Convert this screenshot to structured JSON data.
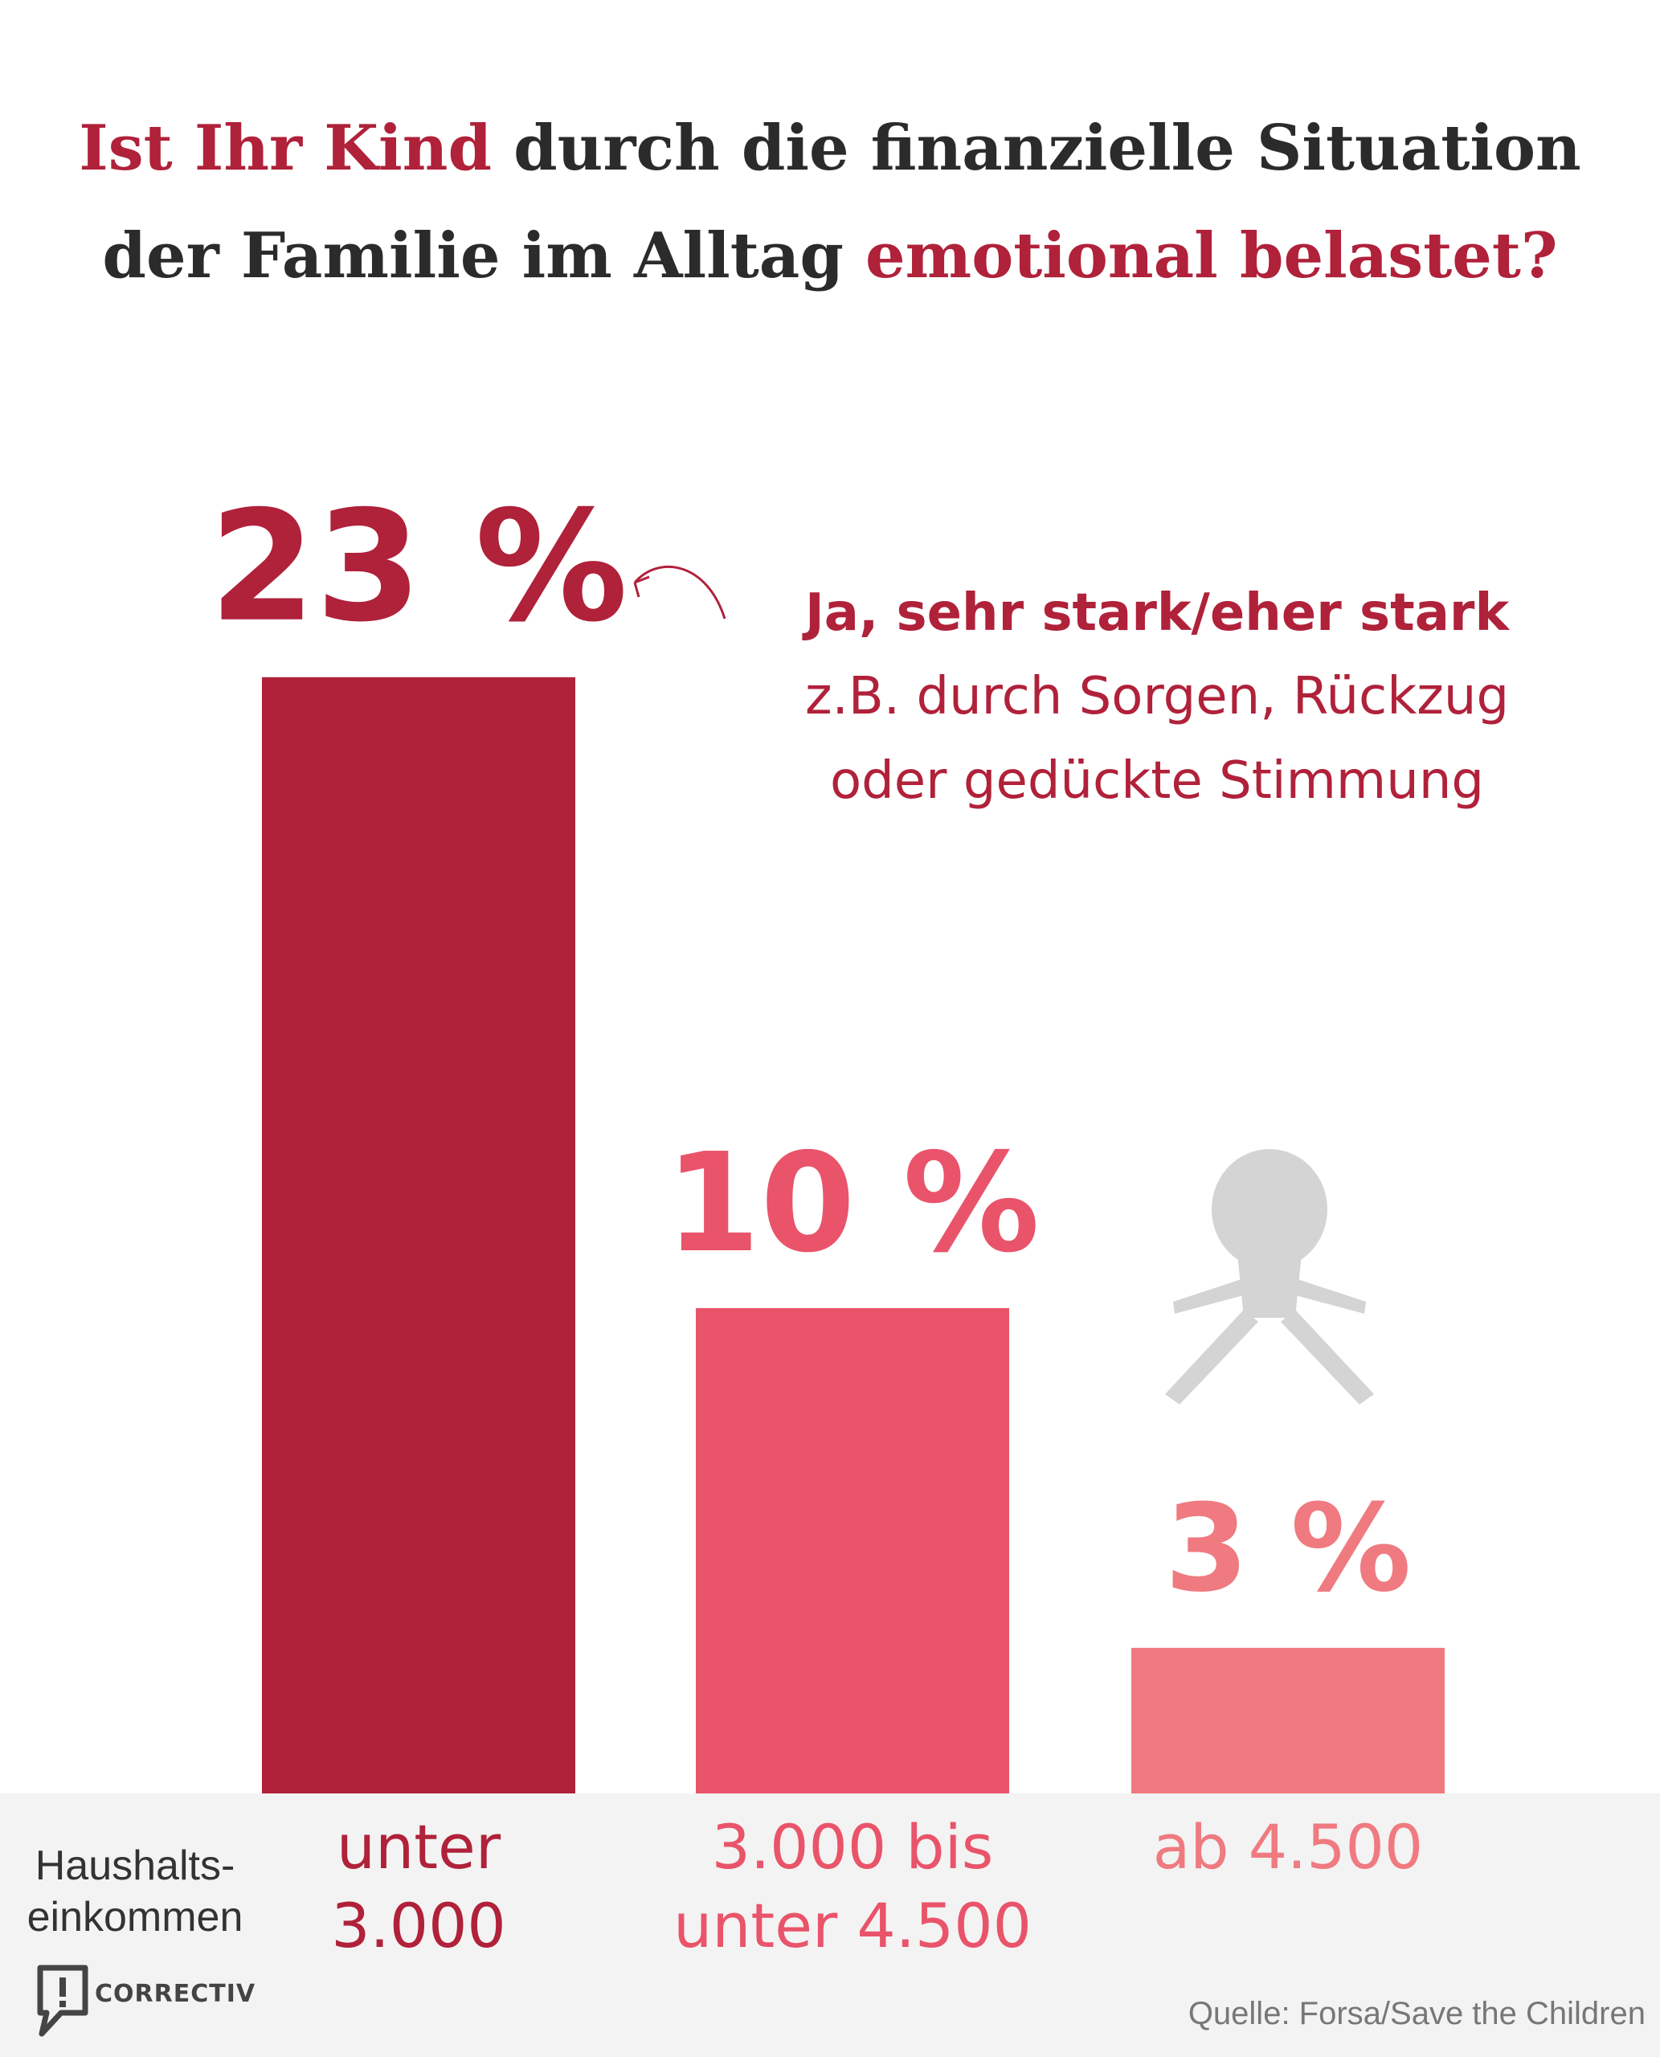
{
  "title": {
    "part1": "Ist Ihr Kind",
    "part2": " durch die finanzielle Situation",
    "part3": "der Familie im Alltag ",
    "part4": "emotional belastet?"
  },
  "annotation": {
    "heading": "Ja, sehr stark/eher stark",
    "line1": "z.B. durch Sorgen, Rückzug",
    "line2": "oder gedückte Stimmung"
  },
  "axis_label": {
    "line1": "Haushalts-",
    "line2": "einkommen"
  },
  "chart_data": {
    "type": "bar",
    "unit": "%",
    "categories": [
      [
        "unter",
        "3.000"
      ],
      [
        "3.000 bis",
        "unter 4.500"
      ],
      [
        "ab 4.500"
      ]
    ],
    "values": [
      23,
      10,
      3
    ],
    "value_labels": [
      "23 %",
      "10 %",
      "3 %"
    ],
    "colors": [
      "#b0213a",
      "#e9546a",
      "#ef7a80"
    ]
  },
  "colors": {
    "accent": "#b0213a",
    "title_text": "#2b2b2b",
    "figure": "#d4d4d4"
  },
  "logo": {
    "text": "CORRECTIV"
  },
  "source": "Quelle: Forsa/Save the Children"
}
